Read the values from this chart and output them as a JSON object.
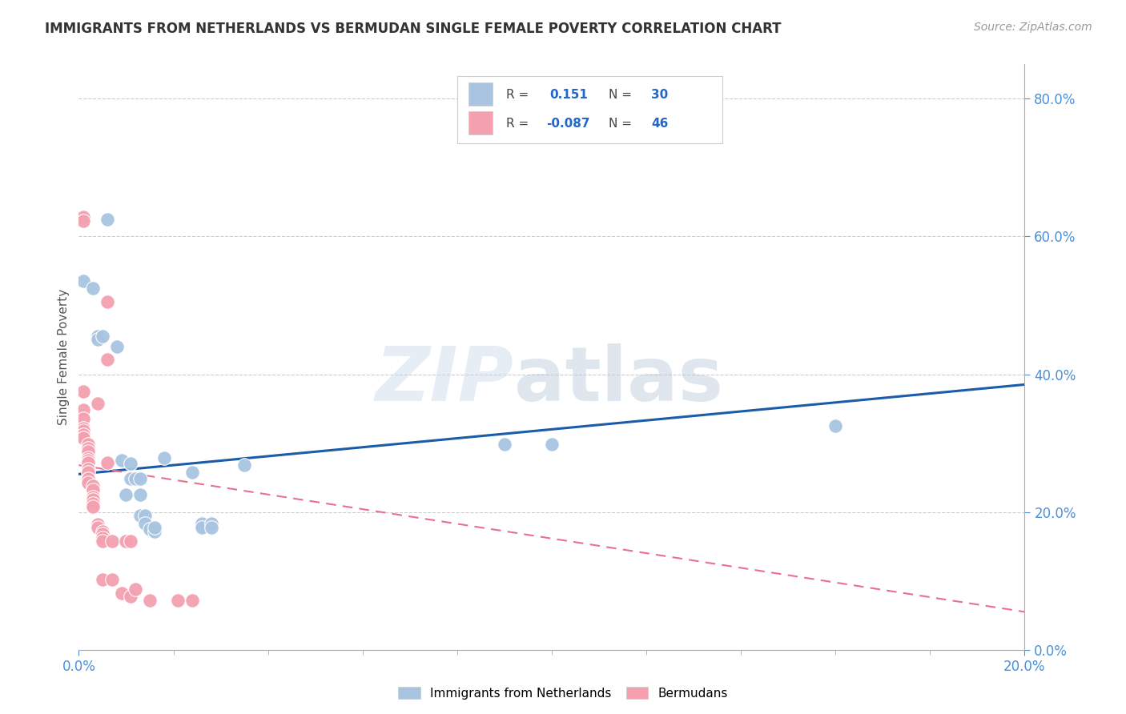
{
  "title": "IMMIGRANTS FROM NETHERLANDS VS BERMUDAN SINGLE FEMALE POVERTY CORRELATION CHART",
  "source": "Source: ZipAtlas.com",
  "ylabel": "Single Female Poverty",
  "legend_labels": [
    "Immigrants from Netherlands",
    "Bermudans"
  ],
  "r_netherlands": 0.151,
  "n_netherlands": 30,
  "r_bermudans": -0.087,
  "n_bermudans": 46,
  "color_netherlands": "#a8c4e0",
  "color_bermudans": "#f4a0b0",
  "line_color_netherlands": "#1a5ca8",
  "line_color_bermudans": "#e87090",
  "xmin": 0.0,
  "xmax": 0.2,
  "ymin": 0.0,
  "ymax": 0.85,
  "watermark_zip": "ZIP",
  "watermark_atlas": "atlas",
  "nl_line_x0": 0.0,
  "nl_line_y0": 0.255,
  "nl_line_x1": 0.2,
  "nl_line_y1": 0.385,
  "bm_line_x0": 0.0,
  "bm_line_y0": 0.268,
  "bm_line_x1": 0.2,
  "bm_line_y1": 0.055,
  "scatter_netherlands": [
    [
      0.001,
      0.535
    ],
    [
      0.003,
      0.525
    ],
    [
      0.004,
      0.455
    ],
    [
      0.004,
      0.45
    ],
    [
      0.005,
      0.455
    ],
    [
      0.006,
      0.625
    ],
    [
      0.008,
      0.44
    ],
    [
      0.009,
      0.275
    ],
    [
      0.01,
      0.225
    ],
    [
      0.011,
      0.27
    ],
    [
      0.011,
      0.248
    ],
    [
      0.012,
      0.248
    ],
    [
      0.013,
      0.248
    ],
    [
      0.013,
      0.225
    ],
    [
      0.013,
      0.195
    ],
    [
      0.014,
      0.195
    ],
    [
      0.014,
      0.183
    ],
    [
      0.015,
      0.175
    ],
    [
      0.016,
      0.172
    ],
    [
      0.016,
      0.178
    ],
    [
      0.018,
      0.278
    ],
    [
      0.024,
      0.258
    ],
    [
      0.026,
      0.183
    ],
    [
      0.026,
      0.178
    ],
    [
      0.028,
      0.183
    ],
    [
      0.028,
      0.178
    ],
    [
      0.035,
      0.268
    ],
    [
      0.09,
      0.298
    ],
    [
      0.1,
      0.298
    ],
    [
      0.16,
      0.325
    ]
  ],
  "scatter_bermudans": [
    [
      0.001,
      0.628
    ],
    [
      0.001,
      0.622
    ],
    [
      0.001,
      0.375
    ],
    [
      0.001,
      0.348
    ],
    [
      0.001,
      0.335
    ],
    [
      0.001,
      0.322
    ],
    [
      0.001,
      0.318
    ],
    [
      0.001,
      0.312
    ],
    [
      0.001,
      0.308
    ],
    [
      0.002,
      0.298
    ],
    [
      0.002,
      0.292
    ],
    [
      0.002,
      0.288
    ],
    [
      0.002,
      0.278
    ],
    [
      0.002,
      0.275
    ],
    [
      0.002,
      0.272
    ],
    [
      0.002,
      0.262
    ],
    [
      0.002,
      0.258
    ],
    [
      0.002,
      0.248
    ],
    [
      0.002,
      0.242
    ],
    [
      0.003,
      0.238
    ],
    [
      0.003,
      0.232
    ],
    [
      0.003,
      0.222
    ],
    [
      0.003,
      0.218
    ],
    [
      0.003,
      0.212
    ],
    [
      0.003,
      0.208
    ],
    [
      0.004,
      0.358
    ],
    [
      0.004,
      0.182
    ],
    [
      0.004,
      0.178
    ],
    [
      0.005,
      0.172
    ],
    [
      0.005,
      0.168
    ],
    [
      0.005,
      0.162
    ],
    [
      0.005,
      0.158
    ],
    [
      0.005,
      0.102
    ],
    [
      0.006,
      0.505
    ],
    [
      0.006,
      0.422
    ],
    [
      0.006,
      0.272
    ],
    [
      0.007,
      0.158
    ],
    [
      0.007,
      0.102
    ],
    [
      0.009,
      0.082
    ],
    [
      0.01,
      0.158
    ],
    [
      0.011,
      0.158
    ],
    [
      0.011,
      0.078
    ],
    [
      0.012,
      0.088
    ],
    [
      0.015,
      0.072
    ],
    [
      0.021,
      0.072
    ],
    [
      0.024,
      0.072
    ]
  ]
}
